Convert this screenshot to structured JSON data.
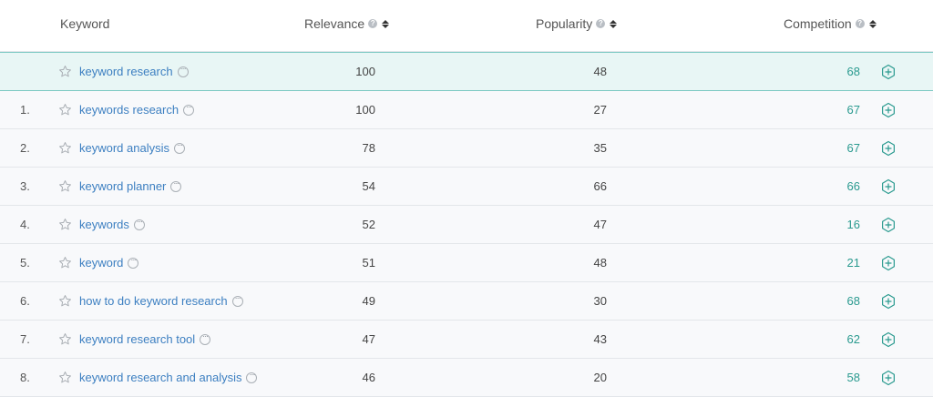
{
  "header": {
    "keyword": "Keyword",
    "relevance": "Relevance",
    "popularity": "Popularity",
    "competition": "Competition",
    "help_glyph": "?"
  },
  "colors": {
    "link": "#3c7fc1",
    "competition": "#2a9a8f",
    "seed_bg": "#e8f6f5",
    "seed_border": "#7cc9c3"
  },
  "rows": [
    {
      "num": "",
      "keyword": "keyword research",
      "relevance": "100",
      "popularity": "48",
      "competition": "68",
      "seed": true
    },
    {
      "num": "1.",
      "keyword": "keywords research",
      "relevance": "100",
      "popularity": "27",
      "competition": "67"
    },
    {
      "num": "2.",
      "keyword": "keyword analysis",
      "relevance": "78",
      "popularity": "35",
      "competition": "67"
    },
    {
      "num": "3.",
      "keyword": "keyword planner",
      "relevance": "54",
      "popularity": "66",
      "competition": "66"
    },
    {
      "num": "4.",
      "keyword": "keywords",
      "relevance": "52",
      "popularity": "47",
      "competition": "16"
    },
    {
      "num": "5.",
      "keyword": "keyword",
      "relevance": "51",
      "popularity": "48",
      "competition": "21"
    },
    {
      "num": "6.",
      "keyword": "how to do keyword research",
      "relevance": "49",
      "popularity": "30",
      "competition": "68"
    },
    {
      "num": "7.",
      "keyword": "keyword research tool",
      "relevance": "47",
      "popularity": "43",
      "competition": "62"
    },
    {
      "num": "8.",
      "keyword": "keyword research and analysis",
      "relevance": "46",
      "popularity": "20",
      "competition": "58"
    }
  ]
}
